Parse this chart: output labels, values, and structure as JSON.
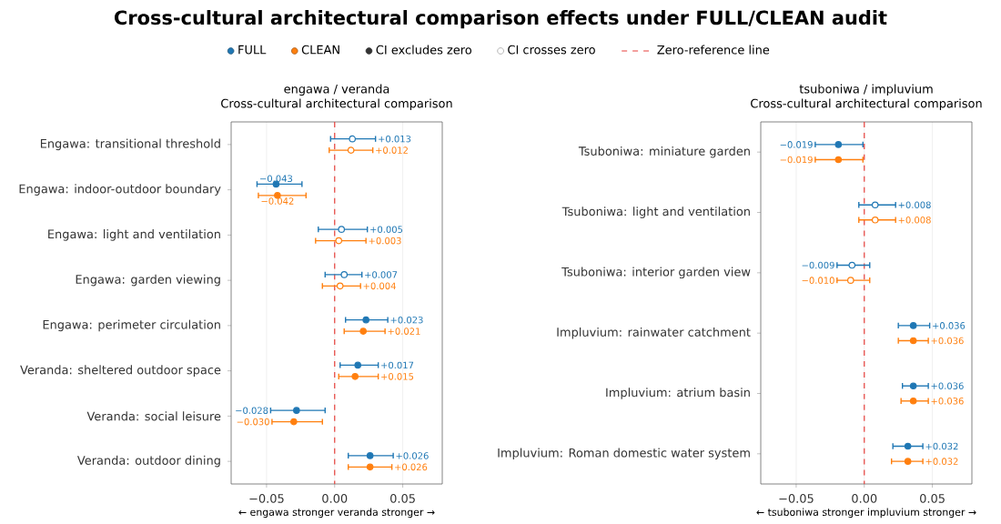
{
  "chart_data": [
    {
      "type": "other",
      "title": "Cross-cultural architectural comparison effects under FULL/CLEAN audit"
    },
    {
      "type": "scatter",
      "orientation": "horizontal",
      "title": "engawa / veranda",
      "subtitle": "Cross-cultural architectural comparison",
      "xlabel": "← engawa stronger     veranda stronger →",
      "categories": [
        "Engawa: transitional threshold",
        "Engawa: indoor-outdoor boundary",
        "Engawa: light and ventilation",
        "Engawa: garden viewing",
        "Engawa: perimeter circulation",
        "Veranda: sheltered outdoor space",
        "Veranda: social leisure",
        "Veranda: outdoor dining"
      ],
      "series": [
        {
          "name": "FULL",
          "color": "#1f77b4",
          "values": [
            0.013,
            -0.043,
            0.005,
            0.007,
            0.023,
            0.017,
            -0.028,
            0.026
          ],
          "errors": [
            [
              -0.003,
              0.03
            ],
            [
              -0.057,
              -0.024
            ],
            [
              -0.012,
              0.024
            ],
            [
              -0.007,
              0.02
            ],
            [
              0.008,
              0.039
            ],
            [
              0.004,
              0.032
            ],
            [
              -0.047,
              -0.007
            ],
            [
              0.01,
              0.043
            ]
          ],
          "value_labels": [
            "+0.013",
            "−0.043",
            "+0.005",
            "+0.007",
            "+0.023",
            "+0.017",
            "−0.028",
            "+0.026"
          ]
        },
        {
          "name": "CLEAN",
          "color": "#ff7f0e",
          "values": [
            0.012,
            -0.042,
            0.003,
            0.004,
            0.021,
            0.015,
            -0.03,
            0.026
          ],
          "errors": [
            [
              -0.004,
              0.028
            ],
            [
              -0.056,
              -0.021
            ],
            [
              -0.014,
              0.023
            ],
            [
              -0.009,
              0.019
            ],
            [
              0.007,
              0.037
            ],
            [
              0.003,
              0.032
            ],
            [
              -0.046,
              -0.009
            ],
            [
              0.01,
              0.042
            ]
          ],
          "value_labels": [
            "+0.012",
            "−0.042",
            "+0.003",
            "+0.004",
            "+0.021",
            "+0.015",
            "−0.030",
            "+0.026"
          ]
        },
        {
          "name": "CI excludes zero",
          "color": "#333333",
          "values": [
            null,
            null,
            null,
            null,
            null,
            null,
            null,
            null
          ]
        },
        {
          "name": "CI crosses zero",
          "color": "#ffffff",
          "values": [
            null,
            null,
            null,
            null,
            null,
            null,
            null,
            null
          ]
        }
      ],
      "xlim": [
        -0.076,
        0.079
      ],
      "xticks": [
        {
          "value": -0.05,
          "label": "−0.05"
        },
        {
          "value": 0,
          "label": "0.00"
        },
        {
          "value": 0.05,
          "label": "0.05"
        }
      ],
      "ref_lines": [
        {
          "axis": "x",
          "value": 0,
          "label": "Zero-reference line",
          "color": "#e8413c",
          "line_style": "dashed"
        }
      ],
      "grid": "x",
      "legend": "top"
    },
    {
      "type": "scatter",
      "orientation": "horizontal",
      "title": "tsuboniwa / impluvium",
      "subtitle": "Cross-cultural architectural comparison",
      "xlabel": "← tsuboniwa stronger     impluvium stronger →",
      "categories": [
        "Tsuboniwa: miniature garden",
        "Tsuboniwa: light and ventilation",
        "Tsuboniwa: interior garden view",
        "Impluvium: rainwater catchment",
        "Impluvium: atrium basin",
        "Impluvium: Roman domestic water system"
      ],
      "series": [
        {
          "color": "#1f77b4",
          "values": [
            -0.019,
            0.008,
            -0.009,
            0.036,
            0.036,
            0.032
          ],
          "errors": [
            [
              -0.036,
              -0.001
            ],
            [
              -0.004,
              0.023
            ],
            [
              -0.02,
              0.004
            ],
            [
              0.025,
              0.048
            ],
            [
              0.028,
              0.047
            ],
            [
              0.021,
              0.043
            ]
          ],
          "value_labels": [
            "−0.019",
            "+0.008",
            "−0.009",
            "+0.036",
            "+0.036",
            "+0.032"
          ]
        },
        {
          "color": "#ff7f0e",
          "values": [
            -0.019,
            0.008,
            -0.01,
            0.036,
            0.036,
            0.032
          ],
          "errors": [
            [
              -0.036,
              -0.001
            ],
            [
              -0.004,
              0.023
            ],
            [
              -0.02,
              0.004
            ],
            [
              0.025,
              0.047
            ],
            [
              0.027,
              0.047
            ],
            [
              0.02,
              0.043
            ]
          ],
          "value_labels": [
            "−0.019",
            "+0.008",
            "−0.010",
            "+0.036",
            "+0.036",
            "+0.032"
          ]
        }
      ],
      "xlim": [
        -0.076,
        0.079
      ],
      "xticks": [
        {
          "value": -0.05,
          "label": "−0.05"
        },
        {
          "value": 0,
          "label": "0.00"
        },
        {
          "value": 0.05,
          "label": "0.05"
        }
      ],
      "ref_lines": [
        {
          "axis": "x",
          "value": 0,
          "color": "#e8413c",
          "line_style": "dashed"
        }
      ],
      "grid": "x"
    }
  ]
}
